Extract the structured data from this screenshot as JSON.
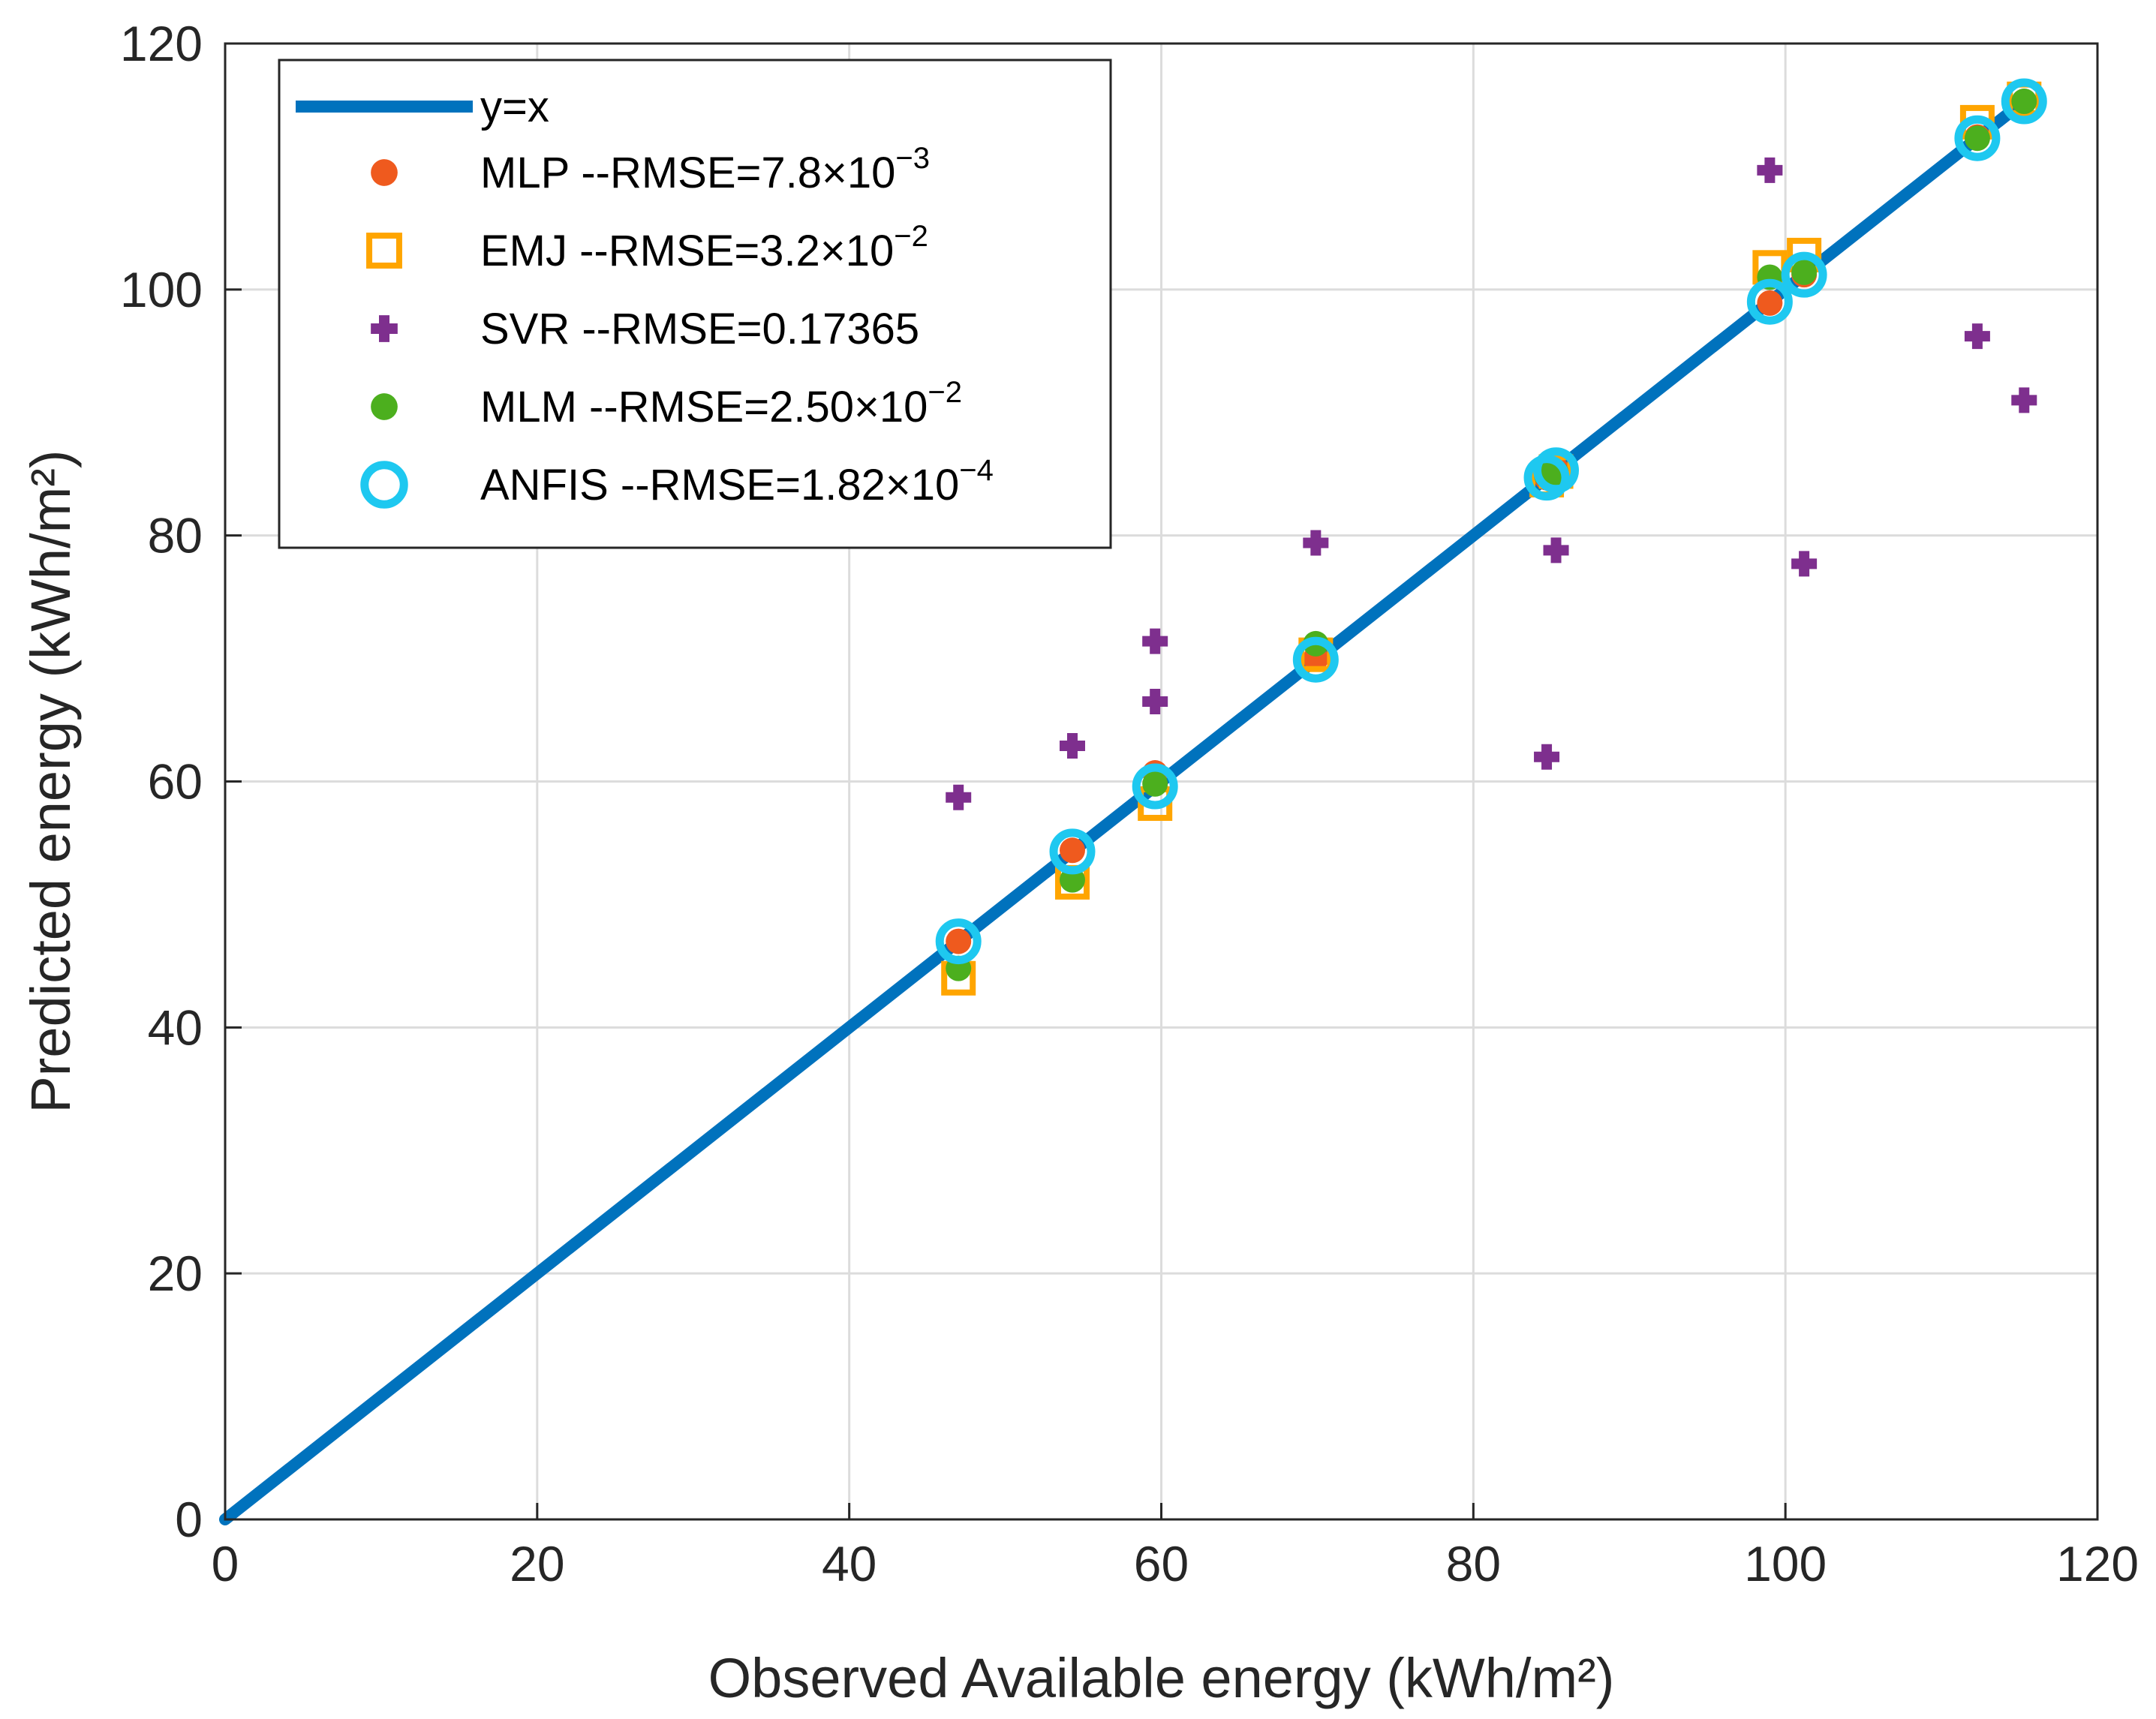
{
  "chart_data": {
    "type": "scatter",
    "xlabel": "Observed Available energy (kWh/m²)",
    "ylabel": "Predicted energy (kWh/m²)",
    "xlim": [
      0,
      120
    ],
    "ylim": [
      0,
      120
    ],
    "xticks": [
      0,
      20,
      40,
      60,
      80,
      100,
      120
    ],
    "yticks": [
      0,
      20,
      40,
      60,
      80,
      100,
      120
    ],
    "grid": true,
    "legend_position": "top-left",
    "colors": {
      "line": "#0072BD",
      "mlp": "#EF5A1E",
      "emj": "#FFA500",
      "svr": "#7E2F8E",
      "mlm": "#4CAF1E",
      "anfis": "#1EC8F0",
      "grid": "#dcdcdc",
      "axis": "#262626"
    },
    "reference_line": {
      "name": "y=x",
      "x": [
        0,
        115.3
      ],
      "y": [
        0,
        115.3
      ]
    },
    "series": [
      {
        "key": "mlp",
        "name": "MLP --RMSE=7.8×10",
        "exponent": "−3",
        "marker": "filled-circle",
        "x": [
          47,
          54.3,
          59.6,
          69.9,
          84.7,
          85.3,
          99,
          101.2,
          112.3,
          115.3
        ],
        "y": [
          47,
          54.4,
          60.7,
          70.0,
          84.7,
          85.4,
          98.9,
          101.2,
          112.4,
          115.3
        ]
      },
      {
        "key": "emj",
        "name": "EMJ --RMSE=3.2×10",
        "exponent": "−2",
        "marker": "open-square",
        "x": [
          47,
          54.3,
          59.6,
          69.9,
          84.7,
          85.3,
          99,
          101.2,
          112.3,
          115.3
        ],
        "y": [
          44.0,
          51.8,
          58.2,
          70.3,
          84.5,
          85.2,
          101.8,
          102.8,
          113.6,
          115.5
        ]
      },
      {
        "key": "svr",
        "name": "SVR --RMSE=0.17365",
        "exponent": "",
        "marker": "plus",
        "x": [
          47,
          54.3,
          59.6,
          59.6,
          69.9,
          84.7,
          85.3,
          99,
          101.2,
          112.3,
          115.3
        ],
        "y": [
          58.7,
          62.9,
          71.4,
          66.5,
          79.4,
          62.0,
          78.8,
          109.7,
          77.7,
          96.2,
          91.0
        ]
      },
      {
        "key": "mlm",
        "name": "MLM --RMSE=2.50×10",
        "exponent": "−2",
        "marker": "filled-circle",
        "x": [
          47,
          54.3,
          59.6,
          69.9,
          84.7,
          85.3,
          99,
          101.2,
          112.3,
          115.3
        ],
        "y": [
          44.8,
          52.0,
          59.8,
          71.2,
          84.9,
          85.1,
          101.0,
          101.4,
          112.3,
          115.3
        ]
      },
      {
        "key": "anfis",
        "name": "ANFIS --RMSE=1.82×10",
        "exponent": "−4",
        "marker": "open-circle",
        "x": [
          47,
          54.3,
          59.6,
          69.9,
          84.7,
          85.3,
          99,
          101.2,
          112.3,
          115.3
        ],
        "y": [
          47,
          54.3,
          59.6,
          69.9,
          84.7,
          85.3,
          99,
          101.2,
          112.3,
          115.3
        ]
      }
    ]
  }
}
